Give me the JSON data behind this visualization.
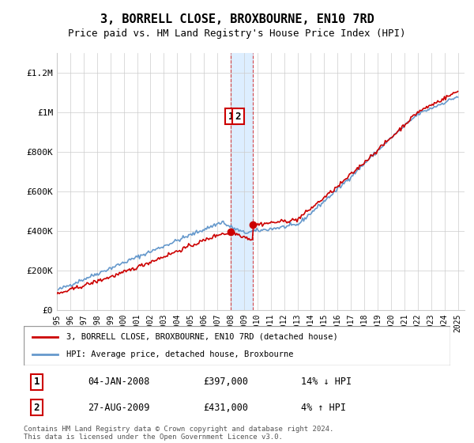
{
  "title": "3, BORRELL CLOSE, BROXBOURNE, EN10 7RD",
  "subtitle": "Price paid vs. HM Land Registry's House Price Index (HPI)",
  "property_label": "3, BORRELL CLOSE, BROXBOURNE, EN10 7RD (detached house)",
  "hpi_label": "HPI: Average price, detached house, Broxbourne",
  "transaction1_label": "1",
  "transaction2_label": "2",
  "transaction1_date": "04-JAN-2008",
  "transaction1_price": "£397,000",
  "transaction1_hpi": "14% ↓ HPI",
  "transaction2_date": "27-AUG-2009",
  "transaction2_price": "£431,000",
  "transaction2_hpi": "4% ↑ HPI",
  "footer": "Contains HM Land Registry data © Crown copyright and database right 2024.\nThis data is licensed under the Open Government Licence v3.0.",
  "property_color": "#cc0000",
  "hpi_color": "#6699cc",
  "highlight_color": "#ddeeff",
  "transaction1_x": 2008.0,
  "transaction2_x": 2009.67,
  "ylim_min": 0,
  "ylim_max": 1300000,
  "xlim_min": 1995,
  "xlim_max": 2025.5,
  "yticks": [
    0,
    200000,
    400000,
    600000,
    800000,
    1000000,
    1200000
  ],
  "ytick_labels": [
    "£0",
    "£200K",
    "£400K",
    "£600K",
    "£800K",
    "£1M",
    "£1.2M"
  ],
  "xticks": [
    1995,
    1996,
    1997,
    1998,
    1999,
    2000,
    2001,
    2002,
    2003,
    2004,
    2005,
    2006,
    2007,
    2008,
    2009,
    2010,
    2011,
    2012,
    2013,
    2014,
    2015,
    2016,
    2017,
    2018,
    2019,
    2020,
    2021,
    2022,
    2023,
    2024,
    2025
  ]
}
